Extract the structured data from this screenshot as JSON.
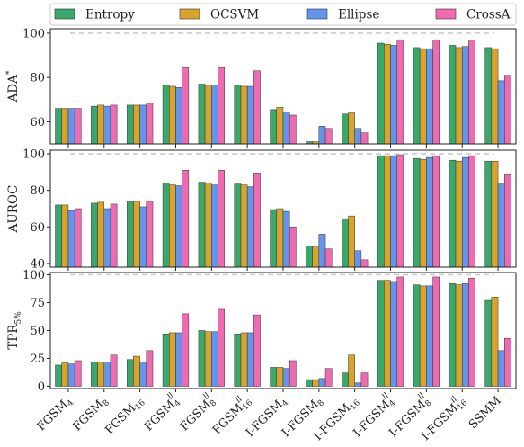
{
  "chart_data": {
    "type": "bar",
    "categories": [
      {
        "base": "FGSM",
        "sub": "4",
        "sup": ""
      },
      {
        "base": "FGSM",
        "sub": "8",
        "sup": ""
      },
      {
        "base": "FGSM",
        "sub": "16",
        "sup": ""
      },
      {
        "base": "FGSM",
        "sub": "4",
        "sup": "ll"
      },
      {
        "base": "FGSM",
        "sub": "8",
        "sup": "ll"
      },
      {
        "base": "FGSM",
        "sub": "16",
        "sup": "ll"
      },
      {
        "base": "I-FGSM",
        "sub": "4",
        "sup": ""
      },
      {
        "base": "I-FGSM",
        "sub": "8",
        "sup": ""
      },
      {
        "base": "I-FGSM",
        "sub": "16",
        "sup": ""
      },
      {
        "base": "I-FGSM",
        "sub": "4",
        "sup": "ll"
      },
      {
        "base": "I-FGSM",
        "sub": "8",
        "sup": "ll"
      },
      {
        "base": "I-FGSM",
        "sub": "16",
        "sup": "ll"
      },
      {
        "base": "SSMM",
        "sub": "",
        "sup": ""
      }
    ],
    "legend": {
      "placement": "top",
      "entries": [
        {
          "name": "Entropy",
          "color": "#3aa86b"
        },
        {
          "name": "OCSVM",
          "color": "#d9a42b"
        },
        {
          "name": "Ellipse",
          "color": "#6495ed"
        },
        {
          "name": "CrossA",
          "color": "#f06ab0"
        }
      ]
    },
    "reference_line": 100,
    "panels": [
      {
        "ylabel": {
          "base": "ADA",
          "sup": "*",
          "sub": ""
        },
        "ylim": [
          50,
          102
        ],
        "yticks": [
          60,
          80,
          100
        ],
        "series": [
          {
            "name": "Entropy",
            "values": [
              66,
              67,
              67.5,
              76.5,
              77,
              76.5,
              65.5,
              51,
              63.5,
              95.5,
              93.5,
              94.5,
              93.5
            ]
          },
          {
            "name": "OCSVM",
            "values": [
              66,
              67.5,
              67.5,
              76,
              76.5,
              76,
              66.5,
              51,
              64,
              95,
              93,
              93.5,
              93
            ]
          },
          {
            "name": "Ellipse",
            "values": [
              66,
              67,
              67.5,
              75.5,
              76.5,
              76,
              64.5,
              58,
              57,
              94.5,
              93,
              94,
              78.5
            ]
          },
          {
            "name": "CrossA",
            "values": [
              66,
              67.5,
              68.5,
              84.5,
              84.5,
              83,
              63,
              57,
              55,
              97,
              97,
              97,
              81
            ]
          }
        ]
      },
      {
        "ylabel": {
          "base": "AUROC",
          "sup": "",
          "sub": ""
        },
        "ylim": [
          38,
          102
        ],
        "yticks": [
          40,
          60,
          80,
          100
        ],
        "series": [
          {
            "name": "Entropy",
            "values": [
              72,
              73,
              74,
              84,
              84.5,
              83.5,
              69.5,
              49.5,
              64.5,
              99,
              97.5,
              96.5,
              96
            ]
          },
          {
            "name": "OCSVM",
            "values": [
              72,
              73.5,
              74,
              83,
              84,
              83,
              70,
              49,
              66,
              99,
              97,
              96,
              96
            ]
          },
          {
            "name": "Ellipse",
            "values": [
              69,
              70,
              71,
              82.5,
              83,
              82,
              68.5,
              56,
              47,
              99,
              98,
              98,
              84
            ]
          },
          {
            "name": "CrossA",
            "values": [
              70,
              72.5,
              74,
              91,
              91,
              89.5,
              60,
              48,
              42,
              99.5,
              99,
              99,
              88.5
            ]
          }
        ]
      },
      {
        "ylabel": {
          "base": "TPR",
          "sup": "",
          "sub": "5%"
        },
        "ylim": [
          -2,
          102
        ],
        "yticks": [
          0,
          25,
          50,
          75,
          100
        ],
        "series": [
          {
            "name": "Entropy",
            "values": [
              19,
              22,
              24,
              47,
              50,
              47,
              17,
              6,
              12,
              95,
              91,
              92,
              77
            ]
          },
          {
            "name": "OCSVM",
            "values": [
              21,
              22,
              27,
              48,
              49,
              48,
              17,
              6,
              28,
              95,
              90,
              91,
              80
            ]
          },
          {
            "name": "Ellipse",
            "values": [
              20,
              22,
              22,
              48,
              49,
              48,
              16,
              7,
              3,
              94,
              90,
              92,
              32
            ]
          },
          {
            "name": "CrossA",
            "values": [
              23,
              28,
              32,
              65,
              69,
              64,
              23,
              16,
              12,
              98,
              98,
              97,
              43
            ]
          }
        ]
      }
    ]
  }
}
